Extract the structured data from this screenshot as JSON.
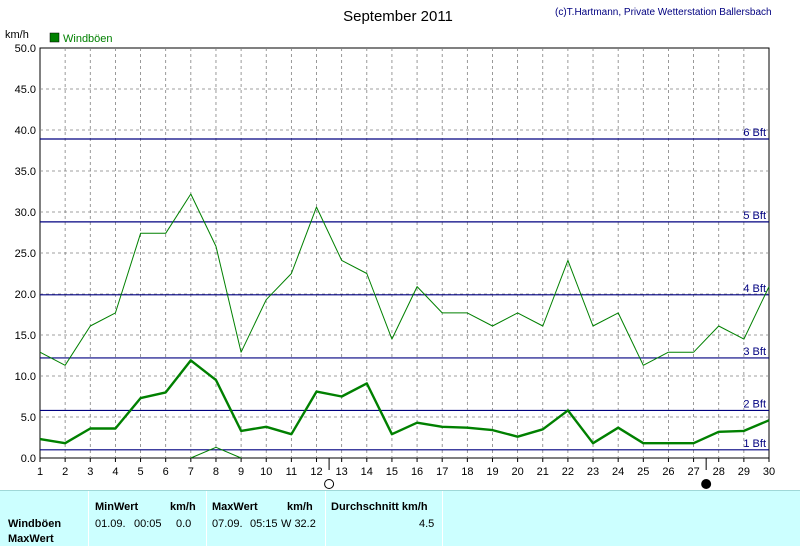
{
  "colors": {
    "background": "#ffffff",
    "grid": "#808080",
    "series": "#008000",
    "beaufort_line": "#000080",
    "panel": "#ccffff"
  },
  "chart_data": {
    "type": "line",
    "title": "September 2011",
    "credit": "(c)T.Hartmann, Private Wetterstation Ballersbach",
    "ylabel": "km/h",
    "ylim": [
      0,
      50
    ],
    "y_ticks": [
      "0.0",
      "5.0",
      "10.0",
      "15.0",
      "20.0",
      "25.0",
      "30.0",
      "35.0",
      "40.0",
      "45.0",
      "50.0"
    ],
    "x": [
      1,
      2,
      3,
      4,
      5,
      6,
      7,
      8,
      9,
      10,
      11,
      12,
      13,
      14,
      15,
      16,
      17,
      18,
      19,
      20,
      21,
      22,
      23,
      24,
      25,
      26,
      27,
      28,
      29,
      30
    ],
    "grid": true,
    "legend": {
      "position": "top-left",
      "entries": [
        "Windböen"
      ]
    },
    "series": [
      {
        "name": "Windböen",
        "style": "thin",
        "values": [
          12.9,
          11.3,
          16.1,
          17.7,
          27.4,
          27.4,
          32.2,
          25.8,
          12.9,
          19.3,
          22.5,
          30.6,
          24.1,
          22.5,
          14.5,
          20.9,
          17.7,
          17.7,
          16.1,
          17.7,
          16.1,
          24.1,
          16.1,
          17.7,
          11.3,
          12.9,
          12.9,
          16.1,
          14.5,
          20.9
        ]
      },
      {
        "style": "bold",
        "values": [
          2.3,
          1.8,
          3.6,
          3.6,
          7.3,
          8.0,
          11.9,
          9.5,
          3.3,
          3.8,
          2.9,
          8.1,
          7.5,
          9.1,
          2.9,
          4.3,
          3.8,
          3.7,
          3.4,
          2.6,
          3.5,
          5.8,
          1.8,
          3.7,
          1.8,
          1.8,
          1.8,
          3.2,
          3.3,
          4.6
        ]
      },
      {
        "style": "min",
        "x": [
          7,
          8,
          9
        ],
        "values": [
          0.0,
          1.3,
          0.0
        ]
      }
    ],
    "beaufort_lines": [
      {
        "label": "1 Bft",
        "value": 1.0
      },
      {
        "label": "2 Bft",
        "value": 5.8
      },
      {
        "label": "3 Bft",
        "value": 12.2
      },
      {
        "label": "4 Bft",
        "value": 19.9
      },
      {
        "label": "5 Bft",
        "value": 28.8
      },
      {
        "label": "6 Bft",
        "value": 38.9
      }
    ],
    "moon_phases": [
      {
        "day": 12.5,
        "phase": "full"
      },
      {
        "day": 27.5,
        "phase": "new"
      }
    ]
  },
  "summary": {
    "row_labels": [
      "Windböen",
      "MaxWert"
    ],
    "min_header": "MinWert",
    "min_unit": "km/h",
    "min_date": "01.09.",
    "min_time": "00:05",
    "min_value": "0.0",
    "max_header": "MaxWert",
    "max_unit": "km/h",
    "max_date": "07.09.",
    "max_time": "05:15",
    "max_value": "W 32.2",
    "avg_header": "Durchschnitt km/h",
    "avg_value": "4.5"
  }
}
